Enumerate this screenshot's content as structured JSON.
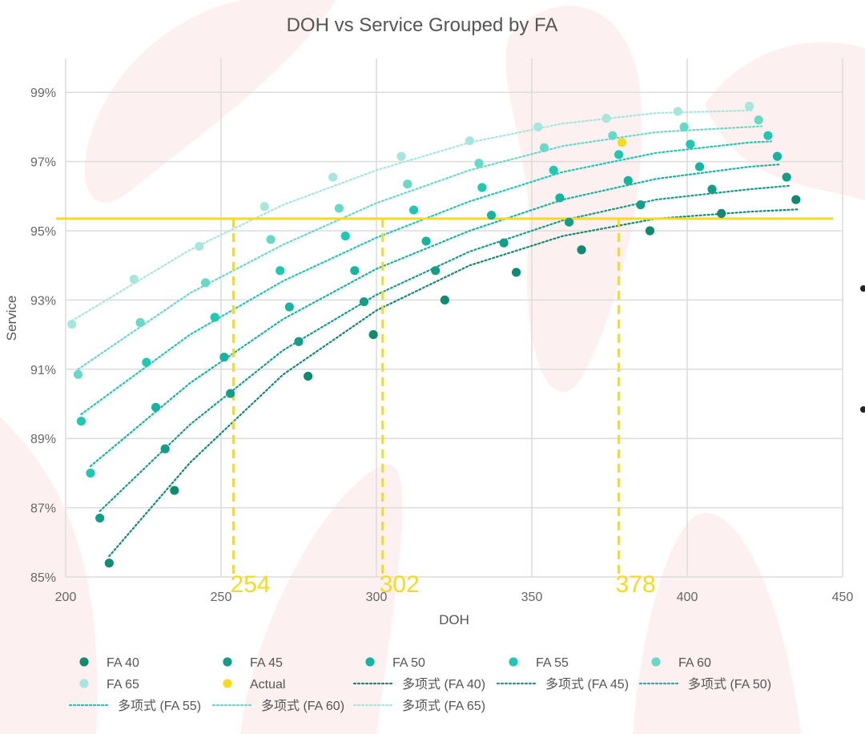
{
  "colors": {
    "fa40": "#118a72",
    "fa45": "#139e88",
    "fa50": "#14b5a1",
    "fa55": "#1ec9b4",
    "fa60": "#66d9c8",
    "fa65": "#a6e6dc",
    "actual": "#f5db1c",
    "grid": "#dcdcdc",
    "axis_text": "#666666",
    "background_shape": "#fdf0f1"
  },
  "chart_data": {
    "type": "scatter",
    "title": "DOH vs Service Grouped by FA",
    "xlabel": "DOH",
    "ylabel": "Service",
    "xlim": [
      200,
      450
    ],
    "ylim": [
      85,
      100
    ],
    "x_ticks": [
      200,
      250,
      300,
      350,
      400,
      450
    ],
    "x_tick_labels": [
      "200",
      "250",
      "300",
      "350",
      "400",
      "450"
    ],
    "y_ticks": [
      85,
      87,
      89,
      91,
      93,
      95,
      97,
      99
    ],
    "y_tick_labels": [
      "85%",
      "87%",
      "89%",
      "91%",
      "93%",
      "95%",
      "97%",
      "99%"
    ],
    "grid": true,
    "legend_placement": "bottom",
    "series": [
      {
        "name": "FA 40",
        "color_key": "fa40",
        "points": [
          [
            214,
            85.4
          ],
          [
            235,
            87.5
          ],
          [
            278,
            90.8
          ],
          [
            299,
            92.0
          ],
          [
            322,
            93.0
          ],
          [
            345,
            93.8
          ],
          [
            366,
            94.45
          ],
          [
            388,
            95.0
          ],
          [
            411,
            95.5
          ],
          [
            435,
            95.9
          ]
        ]
      },
      {
        "name": "FA 45",
        "color_key": "fa45",
        "points": [
          [
            211,
            86.7
          ],
          [
            232,
            88.7
          ],
          [
            253,
            90.3
          ],
          [
            275,
            91.8
          ],
          [
            296,
            92.95
          ],
          [
            319,
            93.85
          ],
          [
            341,
            94.65
          ],
          [
            362,
            95.25
          ],
          [
            385,
            95.75
          ],
          [
            408,
            96.2
          ],
          [
            432,
            96.55
          ]
        ]
      },
      {
        "name": "FA 50",
        "color_key": "fa50",
        "points": [
          [
            229,
            89.9
          ],
          [
            251,
            91.35
          ],
          [
            272,
            92.8
          ],
          [
            293,
            93.85
          ],
          [
            316,
            94.7
          ],
          [
            337,
            95.45
          ],
          [
            359,
            95.95
          ],
          [
            381,
            96.45
          ],
          [
            404,
            96.85
          ],
          [
            429,
            97.15
          ]
        ]
      },
      {
        "name": "FA 55",
        "color_key": "fa55",
        "points": [
          [
            208,
            88.0
          ],
          [
            205,
            89.5
          ],
          [
            226,
            91.2
          ],
          [
            248,
            92.5
          ],
          [
            269,
            93.85
          ],
          [
            290,
            94.85
          ],
          [
            312,
            95.6
          ],
          [
            334,
            96.25
          ],
          [
            357,
            96.75
          ],
          [
            378,
            97.2
          ],
          [
            401,
            97.5
          ],
          [
            426,
            97.75
          ]
        ]
      },
      {
        "name": "FA 60",
        "color_key": "fa60",
        "points": [
          [
            204,
            90.85
          ],
          [
            224,
            92.35
          ],
          [
            245,
            93.5
          ],
          [
            266,
            94.75
          ],
          [
            288,
            95.65
          ],
          [
            310,
            96.35
          ],
          [
            333,
            96.95
          ],
          [
            354,
            97.4
          ],
          [
            376,
            97.75
          ],
          [
            399,
            98.0
          ],
          [
            423,
            98.2
          ]
        ]
      },
      {
        "name": "FA 65",
        "color_key": "fa65",
        "points": [
          [
            202,
            92.3
          ],
          [
            222,
            93.6
          ],
          [
            243,
            94.55
          ],
          [
            264,
            95.7
          ],
          [
            286,
            96.55
          ],
          [
            308,
            97.15
          ],
          [
            330,
            97.6
          ],
          [
            352,
            98.0
          ],
          [
            374,
            98.25
          ],
          [
            397,
            98.45
          ],
          [
            420,
            98.6
          ]
        ]
      },
      {
        "name": "Actual",
        "color_key": "actual",
        "points": [
          [
            379,
            97.55
          ]
        ]
      }
    ],
    "trendlines": [
      {
        "name": "多项式 (FA 40)",
        "color_key": "fa40",
        "points": [
          [
            214,
            85.6
          ],
          [
            240,
            88.3
          ],
          [
            270,
            90.85
          ],
          [
            300,
            92.7
          ],
          [
            330,
            94.0
          ],
          [
            360,
            94.85
          ],
          [
            390,
            95.35
          ],
          [
            420,
            95.55
          ],
          [
            436,
            95.62
          ]
        ]
      },
      {
        "name": "多项式 (FA 45)",
        "color_key": "fa45",
        "points": [
          [
            211,
            86.9
          ],
          [
            240,
            89.4
          ],
          [
            270,
            91.55
          ],
          [
            300,
            93.15
          ],
          [
            330,
            94.4
          ],
          [
            360,
            95.3
          ],
          [
            390,
            95.9
          ],
          [
            420,
            96.2
          ],
          [
            433,
            96.3
          ]
        ]
      },
      {
        "name": "多项式 (FA 50)",
        "color_key": "fa50",
        "points": [
          [
            208,
            88.2
          ],
          [
            240,
            90.6
          ],
          [
            270,
            92.45
          ],
          [
            300,
            93.9
          ],
          [
            330,
            95.0
          ],
          [
            360,
            95.9
          ],
          [
            390,
            96.5
          ],
          [
            420,
            96.85
          ],
          [
            430,
            96.92
          ]
        ]
      },
      {
        "name": "多项式 (FA 55)",
        "color_key": "fa55",
        "points": [
          [
            205,
            89.7
          ],
          [
            240,
            92.0
          ],
          [
            270,
            93.55
          ],
          [
            300,
            94.8
          ],
          [
            330,
            95.85
          ],
          [
            360,
            96.7
          ],
          [
            390,
            97.25
          ],
          [
            420,
            97.55
          ],
          [
            427,
            97.58
          ]
        ]
      },
      {
        "name": "多项式 (FA 60)",
        "color_key": "fa60",
        "points": [
          [
            204,
            91.0
          ],
          [
            240,
            93.2
          ],
          [
            270,
            94.6
          ],
          [
            300,
            95.8
          ],
          [
            330,
            96.75
          ],
          [
            360,
            97.45
          ],
          [
            390,
            97.85
          ],
          [
            420,
            98.0
          ],
          [
            424,
            98.02
          ]
        ]
      },
      {
        "name": "多项式 (FA 65)",
        "color_key": "fa65",
        "points": [
          [
            202,
            92.4
          ],
          [
            240,
            94.45
          ],
          [
            270,
            95.75
          ],
          [
            300,
            96.75
          ],
          [
            330,
            97.55
          ],
          [
            360,
            98.1
          ],
          [
            390,
            98.4
          ],
          [
            421,
            98.48
          ]
        ]
      }
    ],
    "reference_lines": {
      "actual_service": 95.35,
      "vertical_markers": [
        {
          "doh": 254,
          "label": "254"
        },
        {
          "doh": 302,
          "label": "302"
        },
        {
          "doh": 378,
          "label": "378"
        }
      ]
    },
    "legend_entries": [
      {
        "label": "FA 40",
        "kind": "dot",
        "color_key": "fa40"
      },
      {
        "label": "FA 45",
        "kind": "dot",
        "color_key": "fa45"
      },
      {
        "label": "FA 50",
        "kind": "dot",
        "color_key": "fa50"
      },
      {
        "label": "FA 55",
        "kind": "dot",
        "color_key": "fa55"
      },
      {
        "label": "FA 60",
        "kind": "dot",
        "color_key": "fa60"
      },
      {
        "label": "FA 65",
        "kind": "dot",
        "color_key": "fa65"
      },
      {
        "label": "Actual",
        "kind": "dot",
        "color_key": "actual"
      },
      {
        "label": "多项式 (FA 40)",
        "kind": "dotted",
        "color_key": "fa40"
      },
      {
        "label": "多项式 (FA 45)",
        "kind": "dotted",
        "color_key": "fa45"
      },
      {
        "label": "多项式 (FA 50)",
        "kind": "dotted",
        "color_key": "fa50"
      },
      {
        "label": "多项式 (FA 55)",
        "kind": "dotted",
        "color_key": "fa55"
      },
      {
        "label": "多项式 (FA 60)",
        "kind": "dotted",
        "color_key": "fa60"
      },
      {
        "label": "多项式 (FA 65)",
        "kind": "dotted",
        "color_key": "fa65"
      }
    ]
  }
}
